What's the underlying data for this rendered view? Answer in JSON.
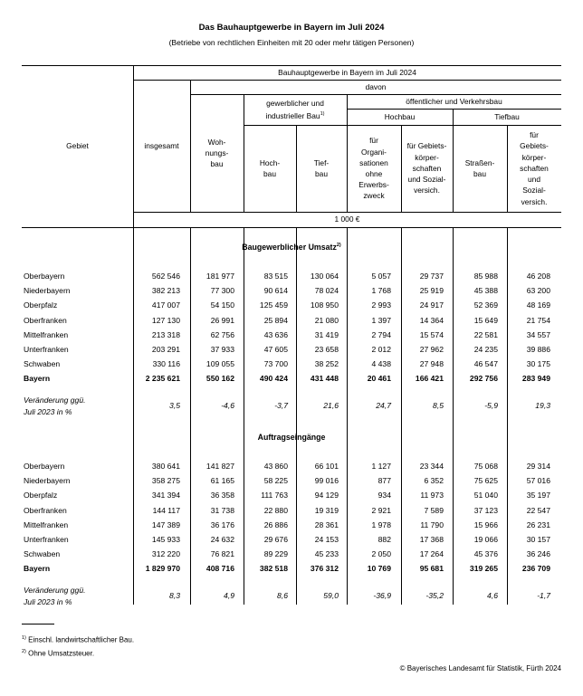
{
  "title": "Das Bauhauptgewerbe in Bayern im Juli 2024",
  "subtitle": "(Betriebe von rechtlichen Einheiten mit 20 oder mehr tätigen Personen)",
  "header": {
    "gebiet": "Gebiet",
    "top": "Bauhauptgewerbe in Bayern im Juli 2024",
    "davon": "davon",
    "insgesamt": "insgesamt",
    "wohnungsbau": [
      "Woh-",
      "nungs-",
      "bau"
    ],
    "gewerblich": [
      "gewerblicher und",
      "industrieller Bau"
    ],
    "gewerblich_fn": "1)",
    "oeffentlich": "öffentlicher und Verkehrsbau",
    "hochbau_group": "Hochbau",
    "tiefbau_group": "Tiefbau",
    "g_hochbau": [
      "Hoch-",
      "bau"
    ],
    "g_tiefbau": [
      "Tief-",
      "bau"
    ],
    "o_hoch_org": [
      "für",
      "Organi-",
      "sationen",
      "ohne",
      "Erwerbs-",
      "zweck"
    ],
    "o_hoch_geb": [
      "für Gebiets-",
      "körper-",
      "schaften",
      "und Sozial-",
      "versich."
    ],
    "o_strassen": [
      "Straßen-",
      "bau"
    ],
    "o_tief_geb": [
      "für",
      "Gebiets-",
      "körper-",
      "schaften",
      "und",
      "Sozial-",
      "versich."
    ],
    "unit": "1 000 €"
  },
  "sections": [
    {
      "title": "Baugewerblicher Umsatz",
      "footnote_ref": "2)",
      "rows": [
        {
          "label": "Oberbayern",
          "values": [
            "562 546",
            "181 977",
            "83 515",
            "130 064",
            "5 057",
            "29 737",
            "85 988",
            "46 208"
          ]
        },
        {
          "label": "Niederbayern",
          "values": [
            "382 213",
            "77 300",
            "90 614",
            "78 024",
            "1 768",
            "25 919",
            "45 388",
            "63 200"
          ]
        },
        {
          "label": "Oberpfalz",
          "values": [
            "417 007",
            "54 150",
            "125 459",
            "108 950",
            "2 993",
            "24 917",
            "52 369",
            "48 169"
          ]
        },
        {
          "label": "Oberfranken",
          "values": [
            "127 130",
            "26 991",
            "25 894",
            "21 080",
            "1 397",
            "14 364",
            "15 649",
            "21 754"
          ]
        },
        {
          "label": "Mittelfranken",
          "values": [
            "213 318",
            "62 756",
            "43 636",
            "31 419",
            "2 794",
            "15 574",
            "22 581",
            "34 557"
          ]
        },
        {
          "label": "Unterfranken",
          "values": [
            "203 291",
            "37 933",
            "47 605",
            "23 658",
            "2 012",
            "27 962",
            "24 235",
            "39 886"
          ]
        },
        {
          "label": "Schwaben",
          "values": [
            "330 116",
            "109 055",
            "73 700",
            "38 252",
            "4 438",
            "27 948",
            "46 547",
            "30 175"
          ]
        }
      ],
      "total": {
        "label": "Bayern",
        "values": [
          "2 235 621",
          "550 162",
          "490 424",
          "431 448",
          "20 461",
          "166 421",
          "292 756",
          "283 949"
        ]
      },
      "change": {
        "label": [
          "Veränderung ggü.",
          "Juli 2023 in %"
        ],
        "values": [
          "3,5",
          "-4,6",
          "-3,7",
          "21,6",
          "24,7",
          "8,5",
          "-5,9",
          "19,3"
        ]
      }
    },
    {
      "title": "Auftragseingänge",
      "footnote_ref": "",
      "rows": [
        {
          "label": "Oberbayern",
          "values": [
            "380 641",
            "141 827",
            "43 860",
            "66 101",
            "1 127",
            "23 344",
            "75 068",
            "29 314"
          ]
        },
        {
          "label": "Niederbayern",
          "values": [
            "358 275",
            "61 165",
            "58 225",
            "99 016",
            "877",
            "6 352",
            "75 625",
            "57 016"
          ]
        },
        {
          "label": "Oberpfalz",
          "values": [
            "341 394",
            "36 358",
            "111 763",
            "94 129",
            "934",
            "11 973",
            "51 040",
            "35 197"
          ]
        },
        {
          "label": "Oberfranken",
          "values": [
            "144 117",
            "31 738",
            "22 880",
            "19 319",
            "2 921",
            "7 589",
            "37 123",
            "22 547"
          ]
        },
        {
          "label": "Mittelfranken",
          "values": [
            "147 389",
            "36 176",
            "26 886",
            "28 361",
            "1 978",
            "11 790",
            "15 966",
            "26 231"
          ]
        },
        {
          "label": "Unterfranken",
          "values": [
            "145 933",
            "24 632",
            "29 676",
            "24 153",
            "882",
            "17 368",
            "19 066",
            "30 157"
          ]
        },
        {
          "label": "Schwaben",
          "values": [
            "312 220",
            "76 821",
            "89 229",
            "45 233",
            "2 050",
            "17 264",
            "45 376",
            "36 246"
          ]
        }
      ],
      "total": {
        "label": "Bayern",
        "values": [
          "1 829 970",
          "408 716",
          "382 518",
          "376 312",
          "10 769",
          "95 681",
          "319 265",
          "236 709"
        ]
      },
      "change": {
        "label": [
          "Veränderung ggü.",
          "Juli 2023 in %"
        ],
        "values": [
          "8,3",
          "4,9",
          "8,6",
          "59,0",
          "-36,9",
          "-35,2",
          "4,6",
          "-1,7"
        ]
      }
    }
  ],
  "footnotes": [
    {
      "mark": "1)",
      "text": "Einschl. landwirtschaftlicher Bau."
    },
    {
      "mark": "2)",
      "text": "Ohne Umsatzsteuer."
    }
  ],
  "copyright": "© Bayerisches Landesamt für Statistik, Fürth 2024"
}
